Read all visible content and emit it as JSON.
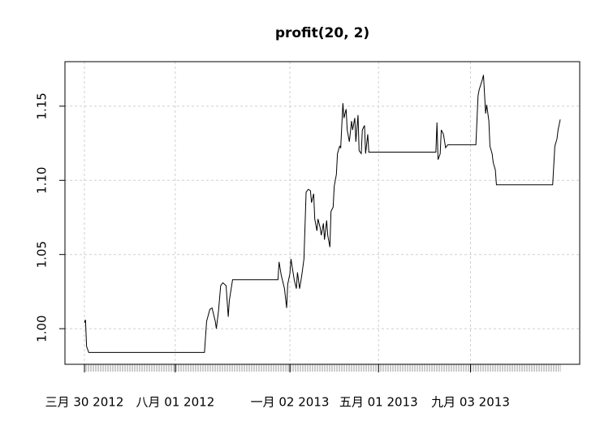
{
  "chart_data": {
    "type": "line",
    "title": "profit(20, 2)",
    "color": "#000000",
    "grid": true,
    "x": [
      0,
      1,
      2,
      4,
      111,
      113,
      116,
      118,
      121,
      122,
      124,
      126,
      128,
      131,
      133,
      134,
      137,
      179,
      180,
      182,
      184,
      185,
      187,
      188,
      190,
      191,
      194,
      196,
      197,
      199,
      201,
      203,
      205,
      207,
      209,
      210,
      212,
      213,
      215,
      216,
      218,
      219,
      221,
      222,
      224,
      225,
      227,
      228,
      230,
      231,
      233,
      234,
      236,
      237,
      239,
      240,
      242,
      243,
      245,
      247,
      248,
      250,
      251,
      253,
      254,
      256,
      257,
      259,
      260,
      262,
      263,
      325,
      326,
      327,
      329,
      330,
      332,
      334,
      336,
      362,
      364,
      365,
      368,
      369,
      371,
      372,
      374,
      375,
      377,
      378,
      380,
      381,
      433,
      435,
      437,
      438,
      440
    ],
    "values": [
      1.004,
      1.006,
      0.988,
      0.984,
      0.984,
      1.005,
      1.013,
      1.014,
      1.005,
      1.0,
      1.012,
      1.029,
      1.031,
      1.029,
      1.008,
      1.019,
      1.033,
      1.033,
      1.045,
      1.036,
      1.03,
      1.027,
      1.014,
      1.03,
      1.037,
      1.047,
      1.033,
      1.027,
      1.038,
      1.027,
      1.036,
      1.047,
      1.092,
      1.094,
      1.093,
      1.085,
      1.091,
      1.074,
      1.066,
      1.074,
      1.068,
      1.063,
      1.071,
      1.06,
      1.073,
      1.063,
      1.055,
      1.079,
      1.082,
      1.096,
      1.104,
      1.118,
      1.123,
      1.122,
      1.152,
      1.142,
      1.148,
      1.134,
      1.126,
      1.14,
      1.134,
      1.142,
      1.126,
      1.144,
      1.12,
      1.118,
      1.134,
      1.137,
      1.118,
      1.131,
      1.119,
      1.119,
      1.139,
      1.114,
      1.118,
      1.134,
      1.131,
      1.122,
      1.124,
      1.124,
      1.157,
      1.161,
      1.168,
      1.171,
      1.145,
      1.151,
      1.14,
      1.123,
      1.118,
      1.112,
      1.107,
      1.097,
      1.097,
      1.123,
      1.128,
      1.134,
      1.141
    ],
    "xlim": [
      -18,
      458
    ],
    "xticks": [
      {
        "value": 0,
        "label": "三月 30 2012"
      },
      {
        "value": 84,
        "label": "八月 01 2012"
      },
      {
        "value": 190,
        "label": "一月 02 2013"
      },
      {
        "value": 272,
        "label": "五月 01 2013"
      },
      {
        "value": 357,
        "label": "九月 03 2013"
      }
    ],
    "ylim": [
      0.976,
      1.18
    ],
    "yticks": [
      {
        "value": 1,
        "label": "1.00"
      },
      1.05,
      {
        "value": 1.1,
        "label": "1.10"
      },
      1.15
    ]
  }
}
